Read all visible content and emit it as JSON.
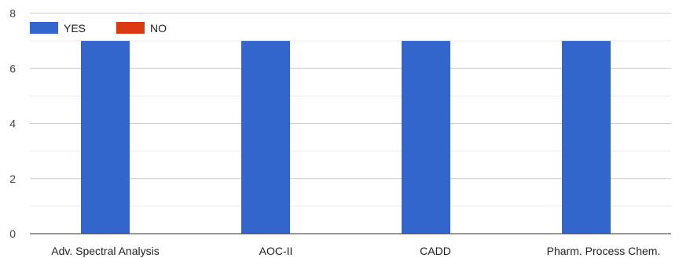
{
  "chart_data": {
    "type": "bar",
    "categories": [
      "Adv. Spectral Analysis",
      "AOC-II",
      "CADD",
      "Pharm. Process Chem."
    ],
    "series": [
      {
        "name": "YES",
        "color": "#3366cc",
        "values": [
          7,
          7,
          7,
          7
        ]
      },
      {
        "name": "NO",
        "color": "#dc3912",
        "values": [
          0,
          0,
          0,
          0
        ]
      }
    ],
    "ylim": [
      0,
      8
    ],
    "y_ticks": [
      0,
      2,
      4,
      6,
      8
    ],
    "grid": true,
    "legend_position": "top-left"
  }
}
